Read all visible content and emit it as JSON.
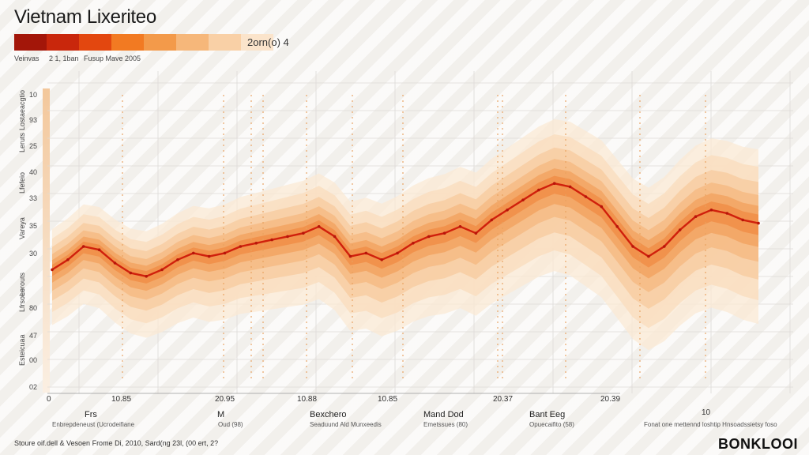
{
  "title": "Vietnam Lixeriteo",
  "legend": {
    "label": "2orn(o) 4",
    "swatches": [
      "#a31609",
      "#c9270c",
      "#e3470f",
      "#f27a22",
      "#f39a4a",
      "#f6b77a",
      "#f9d0a6",
      "#fbe4cb"
    ],
    "sub_labels": [
      "Veinvas",
      "2 1, 1ban",
      "Fusup Mave 2005"
    ]
  },
  "y_labels": [
    "10",
    "93",
    "25",
    "40",
    "33",
    "35",
    "30",
    "80",
    "47",
    "00",
    "02"
  ],
  "y_side_labels": [
    "Lostaeacgtio",
    "Leruts",
    "Lfefeio",
    "Vareya",
    "Lerouts",
    "Lfrsoeo",
    "Esteicuaa"
  ],
  "x_ticks": [
    "0",
    "10.85",
    "20.95",
    "10.88",
    "10.85",
    "20.37",
    "20.39",
    "10"
  ],
  "x_categories": [
    "Frs",
    "M",
    "Bexchero",
    "Mand Dod",
    "Bant Eeg"
  ],
  "x_notes": [
    "Enbrepdeneust (Ucrodeifiane",
    "Oud (98)",
    "Seaduund Ald Munxeedis",
    "Emetssues (80)",
    "Opuecaifito (58)",
    "Fonat one mettennd loshtip Hnsoadssietsy foso"
  ],
  "footer": "Stoure oif.dell & Vesoen Frome Di, 2010, Sard(ng 23l, (00 ert, 2?",
  "logo": "BONKLOOI",
  "chart_data": {
    "type": "area",
    "title": "Vietnam Lixeriteo",
    "xlabel": "",
    "ylabel": "",
    "x": [
      0,
      1,
      2,
      3,
      4,
      5,
      6,
      7,
      8,
      9,
      10,
      11,
      12,
      13,
      14,
      15,
      16,
      17,
      18,
      19,
      20,
      21,
      22,
      23,
      24,
      25,
      26,
      27,
      28,
      29,
      30,
      31,
      32,
      33,
      34,
      35,
      36,
      37,
      38,
      39,
      40,
      41,
      42,
      43,
      44,
      45
    ],
    "series": [
      {
        "values": [
          33,
          36,
          40,
          39,
          35,
          32,
          31,
          33,
          36,
          38,
          37,
          38,
          40,
          41,
          42,
          43,
          44,
          46,
          43,
          37,
          38,
          36,
          38,
          41,
          43,
          44,
          46,
          44,
          48,
          51,
          54,
          57,
          59,
          58,
          55,
          52,
          46,
          40,
          37,
          40,
          45,
          49,
          51,
          50,
          48,
          47
        ]
      }
    ],
    "ylim": [
      0,
      100
    ],
    "grid": true,
    "legend_position": "top-left",
    "colors": {
      "line": "#d0200c",
      "band_inner": "#f08a3a",
      "band_outer": "#f9dcbc",
      "spike": "#e9a05e"
    }
  }
}
